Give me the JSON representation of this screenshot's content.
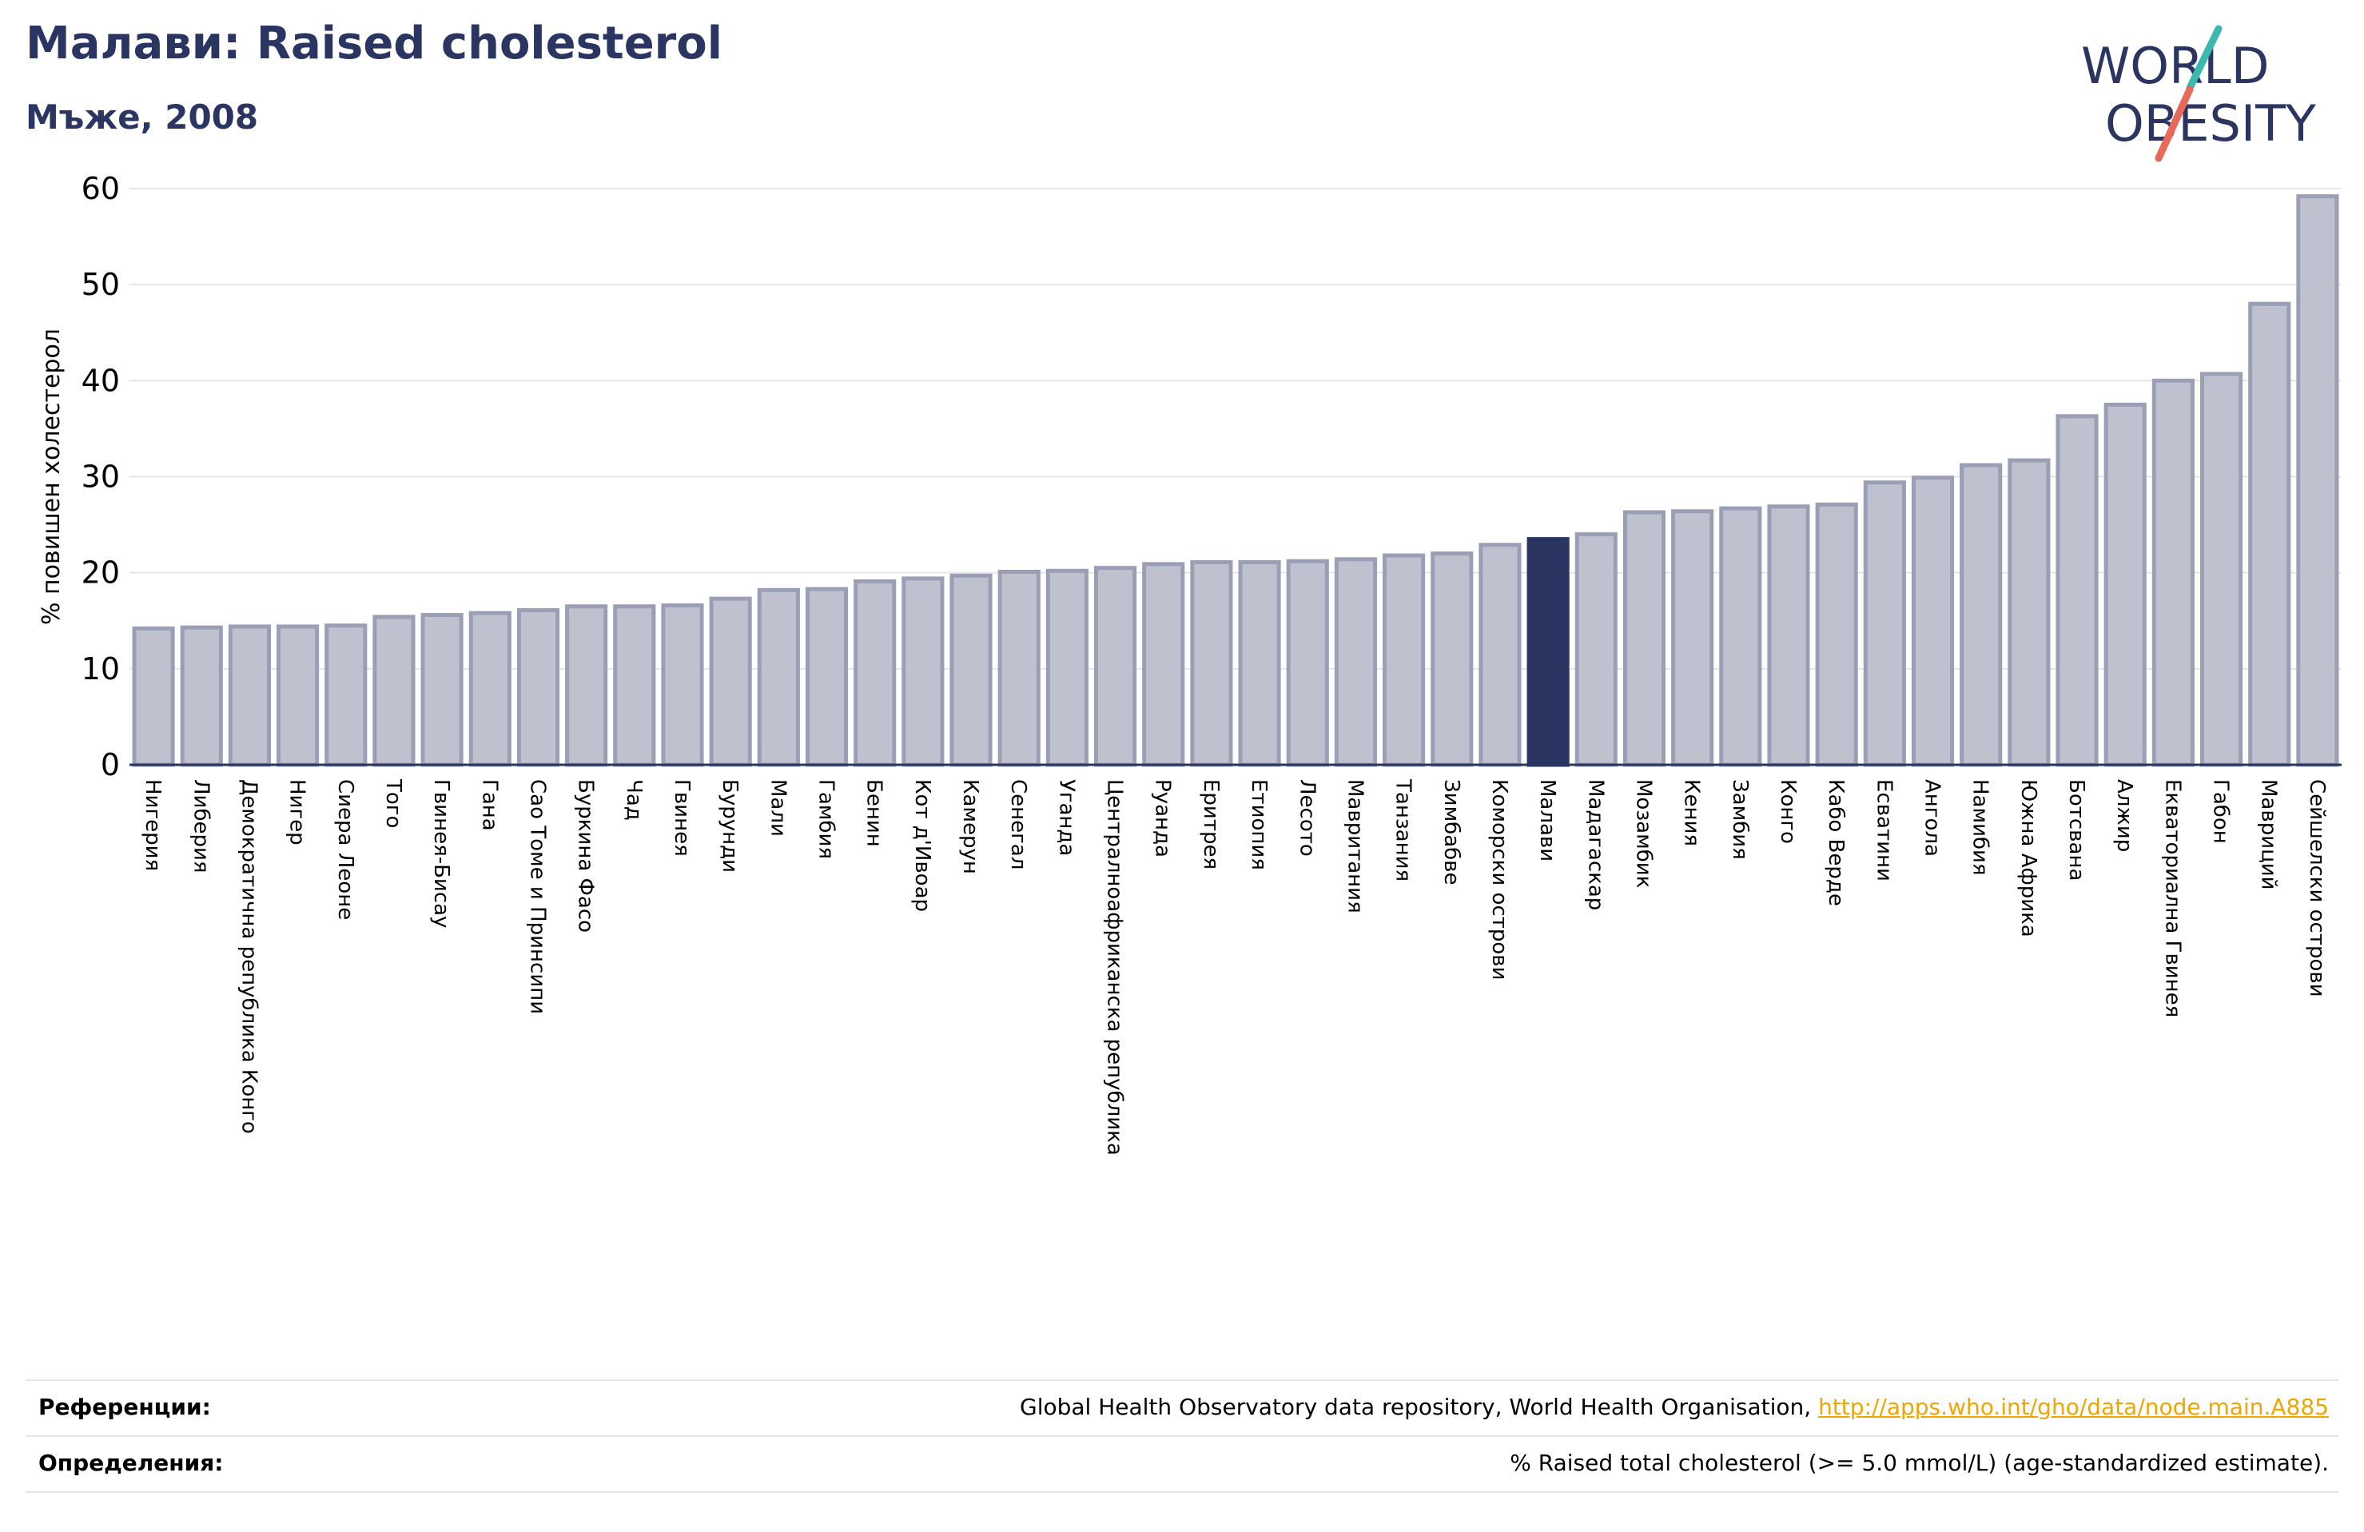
{
  "header": {
    "title": "Малави: Raised cholesterol",
    "subtitle": "Мъже, 2008"
  },
  "logo": {
    "line1": "WORLD",
    "line2": "OBESITY"
  },
  "colors": {
    "bar": "#bfc2ce",
    "bar_stroke": "#9a9fb6",
    "highlight": "#2b3561",
    "grid": "#e6e6e6",
    "title": "#2b3561",
    "link": "#f0a500",
    "logo_teal": "#3bb8b0",
    "logo_red": "#e8685a"
  },
  "chart_data": {
    "type": "bar",
    "ylabel": "% повишен холестерол",
    "ylim": [
      0,
      60
    ],
    "yticks": [
      0,
      10,
      20,
      30,
      40,
      50,
      60
    ],
    "grid": true,
    "highlight": "Малави",
    "categories": [
      "Нигерия",
      "Либерия",
      "Демократична република Конго",
      "Нигер",
      "Сиера Леоне",
      "Того",
      "Гвинея-Бисау",
      "Гана",
      "Сао Томе и Принсипи",
      "Буркина Фасо",
      "Чад",
      "Гвинея",
      "Бурунди",
      "Мали",
      "Гамбия",
      "Бенин",
      "Кот д'Ивоар",
      "Камерун",
      "Сенегал",
      "Уганда",
      "Централноафриканска република",
      "Руанда",
      "Еритрея",
      "Етиопия",
      "Лесото",
      "Мавритания",
      "Танзания",
      "Зимбабве",
      "Коморски острови",
      "Малави",
      "Мадагаскар",
      "Мозамбик",
      "Кения",
      "Замбия",
      "Конго",
      "Кабо Верде",
      "Есватини",
      "Ангола",
      "Намибия",
      "Южна Африка",
      "Ботсвана",
      "Алжир",
      "Екваториална Гвинея",
      "Габон",
      "Мавриций",
      "Сейшелски острови"
    ],
    "values": [
      14.2,
      14.3,
      14.4,
      14.4,
      14.5,
      15.4,
      15.6,
      15.8,
      16.1,
      16.5,
      16.5,
      16.6,
      17.3,
      18.2,
      18.3,
      19.1,
      19.4,
      19.7,
      20.1,
      20.2,
      20.5,
      20.9,
      21.1,
      21.1,
      21.2,
      21.4,
      21.8,
      22.0,
      22.9,
      23.5,
      24.0,
      26.3,
      26.4,
      26.7,
      26.9,
      27.1,
      29.4,
      29.9,
      31.2,
      31.7,
      36.3,
      37.5,
      40.0,
      40.7,
      48.0,
      59.2
    ]
  },
  "footer": {
    "references_label": "Референции:",
    "references_text": "Global Health Observatory data repository, World Health Organisation, ",
    "references_link": "http://apps.who.int/gho/data/node.main.A885",
    "definitions_label": "Определения:",
    "definitions_text": "% Raised total cholesterol (>= 5.0 mmol/L) (age-standardized estimate)."
  }
}
